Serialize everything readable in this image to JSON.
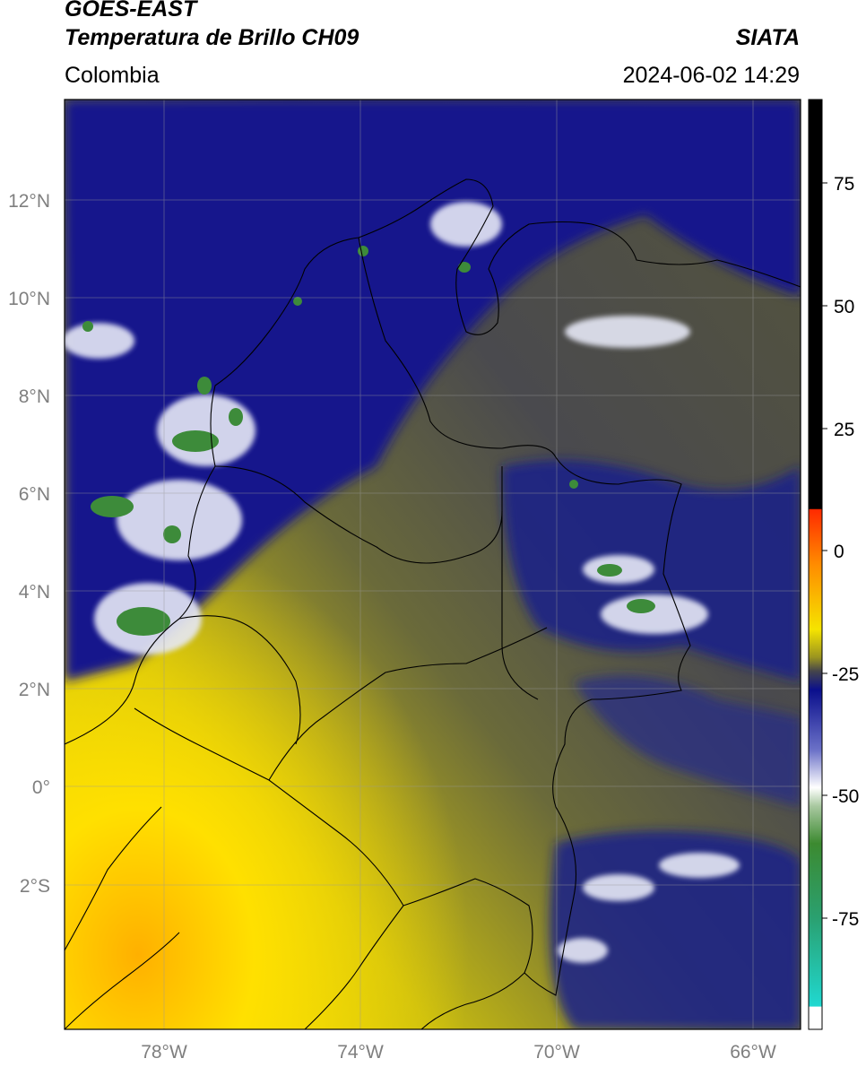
{
  "header": {
    "satellite": "GOES-EAST",
    "product": "Temperatura de Brillo CH09",
    "brand": "SIATA",
    "region": "Colombia",
    "datetime": "2024-06-02 14:29"
  },
  "map": {
    "lat_labels": [
      "12°N",
      "10°N",
      "8°N",
      "6°N",
      "4°N",
      "2°N",
      "0°",
      "2°S"
    ],
    "lon_labels": [
      "78°W",
      "74°W",
      "70°W",
      "66°W"
    ]
  },
  "colorbar": {
    "tick_labels": [
      "75",
      "50",
      "25",
      "0",
      "-25",
      "-50",
      "-75"
    ],
    "colors": [
      "#000000",
      "#ff2a00",
      "#ff8c00",
      "#f5e400",
      "#7a7a2a",
      "#44444c",
      "#0a0f8c",
      "#6c72c8",
      "#ffffff",
      "#3c8a30",
      "#2aa070",
      "#20d8d0"
    ]
  }
}
